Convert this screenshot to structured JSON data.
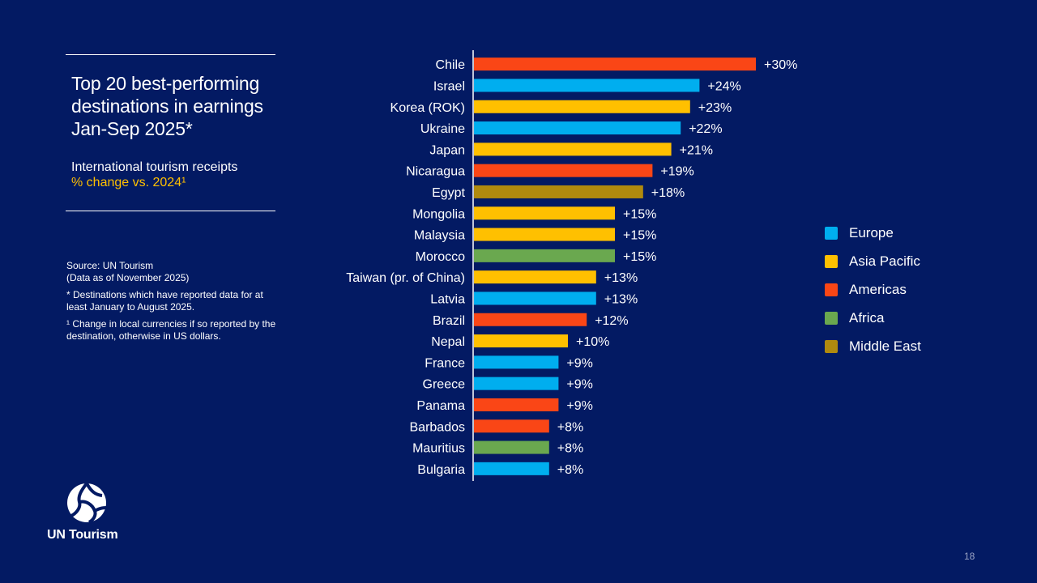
{
  "header": {
    "title": "Top 20 best-performing destinations in earnings Jan-Sep 2025*",
    "subtitle": "International tourism receipts",
    "subtitle_accent": "% change vs. 2024¹"
  },
  "notes": {
    "source_line1": "Source: UN Tourism",
    "source_line2": "(Data as of November 2025)",
    "note1": "* Destinations which have reported data for at least January to August 2025.",
    "note2": "¹ Change in local currencies if so reported by the destination, otherwise in US dollars."
  },
  "brand": {
    "name": "UN Tourism",
    "logo_icon": "un-tourism-globe-icon"
  },
  "page_number": "18",
  "colors": {
    "background": "#031a63",
    "Europe": "#00aeef",
    "Asia Pacific": "#ffc000",
    "Americas": "#fa4616",
    "Africa": "#6aa84f",
    "Middle East": "#b08a0e"
  },
  "chart_data": {
    "type": "bar",
    "orientation": "horizontal",
    "title": "",
    "xlabel": "",
    "ylabel": "",
    "xlim": [
      0,
      30
    ],
    "grid": false,
    "legend_position": "right",
    "categories": [
      "Chile",
      "Israel",
      "Korea (ROK)",
      "Ukraine",
      "Japan",
      "Nicaragua",
      "Egypt",
      "Mongolia",
      "Malaysia",
      "Morocco",
      "Taiwan (pr. of China)",
      "Latvia",
      "Brazil",
      "Nepal",
      "France",
      "Greece",
      "Panama",
      "Barbados",
      "Mauritius",
      "Bulgaria"
    ],
    "values": [
      30,
      24,
      23,
      22,
      21,
      19,
      18,
      15,
      15,
      15,
      13,
      13,
      12,
      10,
      9,
      9,
      9,
      8,
      8,
      8
    ],
    "value_labels": [
      "+30%",
      "+24%",
      "+23%",
      "+22%",
      "+21%",
      "+19%",
      "+18%",
      "+15%",
      "+15%",
      "+15%",
      "+13%",
      "+13%",
      "+12%",
      "+10%",
      "+9%",
      "+9%",
      "+9%",
      "+8%",
      "+8%",
      "+8%"
    ],
    "regions": [
      "Americas",
      "Europe",
      "Asia Pacific",
      "Europe",
      "Asia Pacific",
      "Americas",
      "Middle East",
      "Asia Pacific",
      "Asia Pacific",
      "Africa",
      "Asia Pacific",
      "Europe",
      "Americas",
      "Asia Pacific",
      "Europe",
      "Europe",
      "Americas",
      "Americas",
      "Africa",
      "Europe"
    ],
    "legend": [
      "Europe",
      "Asia Pacific",
      "Americas",
      "Africa",
      "Middle East"
    ]
  }
}
